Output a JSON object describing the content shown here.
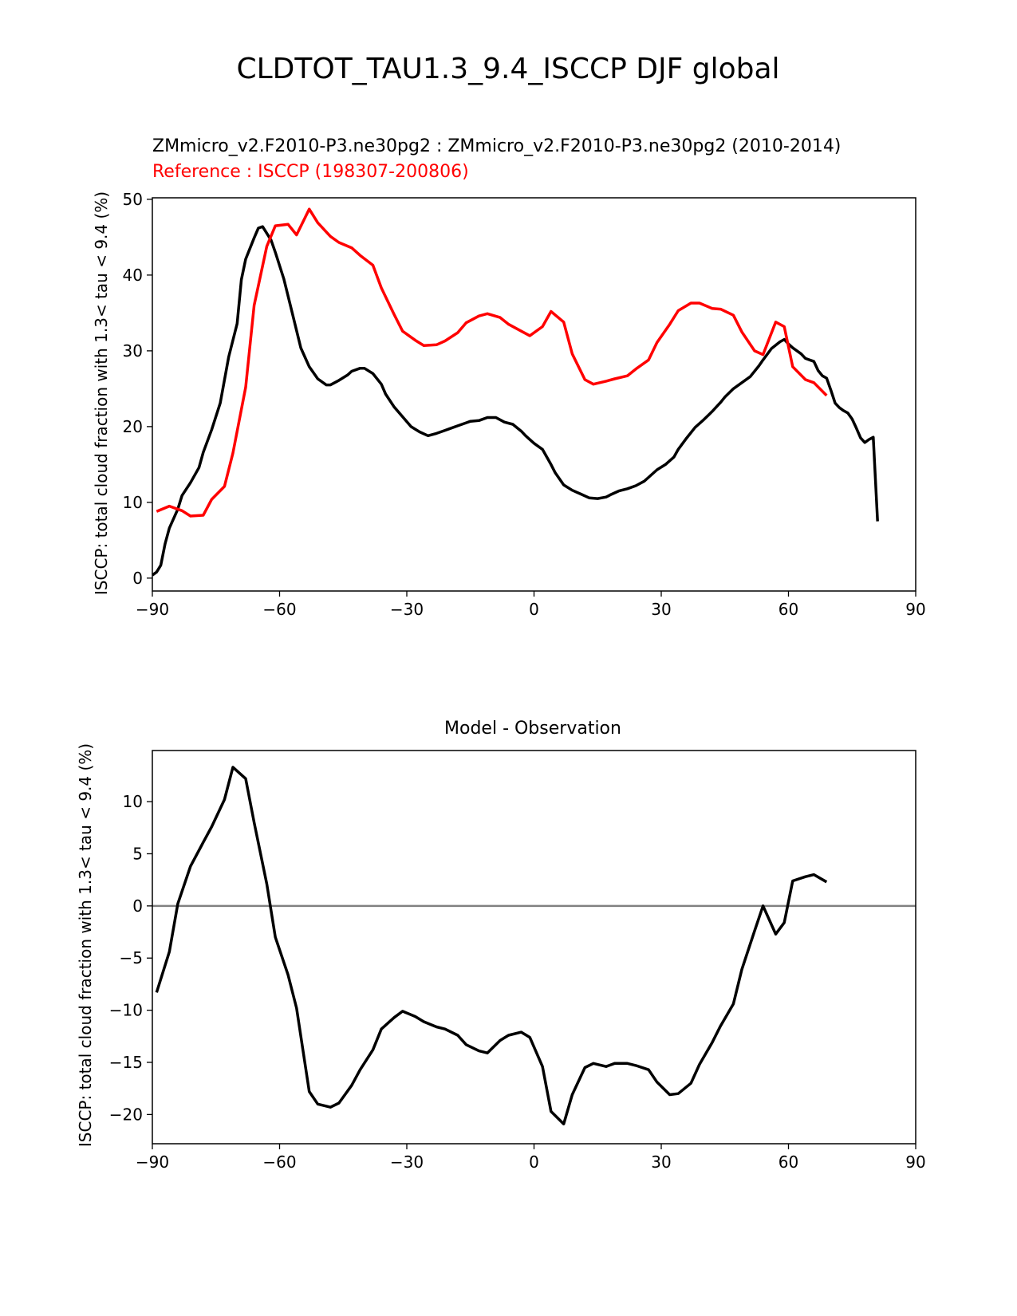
{
  "figure_title": "CLDTOT_TAU1.3_9.4_ISCCP DJF global",
  "chart_data": [
    {
      "type": "line",
      "subtitle_model": "ZMmicro_v2.F2010-P3.ne30pg2 : ZMmicro_v2.F2010-P3.ne30pg2 (2010-2014)",
      "subtitle_reference": "Reference : ISCCP (198307-200806)",
      "xlabel": "",
      "ylabel": "ISCCP: total cloud fraction with 1.3< tau < 9.4 (%)",
      "xlim": [
        -90,
        90
      ],
      "ylim": [
        -1.7,
        50.2
      ],
      "xticks": [
        -90,
        -60,
        -30,
        0,
        30,
        60,
        90
      ],
      "xtick_labels": [
        "−90",
        "−60",
        "−30",
        "0",
        "30",
        "60",
        "90"
      ],
      "yticks": [
        0,
        10,
        20,
        30,
        40,
        50
      ],
      "ytick_labels": [
        "0",
        "10",
        "20",
        "30",
        "40",
        "50"
      ],
      "grid": false,
      "series": [
        {
          "color": "#000000",
          "points": [
            [
              -90,
              0.4
            ],
            [
              -89,
              0.8
            ],
            [
              -88,
              1.7
            ],
            [
              -87,
              4.5
            ],
            [
              -86,
              6.6
            ],
            [
              -84,
              9.1
            ],
            [
              -83,
              10.9
            ],
            [
              -81,
              12.6
            ],
            [
              -79,
              14.6
            ],
            [
              -78,
              16.6
            ],
            [
              -76,
              19.6
            ],
            [
              -74,
              23.1
            ],
            [
              -72,
              29.2
            ],
            [
              -70,
              33.6
            ],
            [
              -69,
              39.4
            ],
            [
              -68,
              42.1
            ],
            [
              -66,
              44.9
            ],
            [
              -65,
              46.2
            ],
            [
              -64,
              46.4
            ],
            [
              -62,
              44.6
            ],
            [
              -61,
              43.0
            ],
            [
              -59,
              39.5
            ],
            [
              -57,
              35.0
            ],
            [
              -55,
              30.4
            ],
            [
              -53,
              27.9
            ],
            [
              -51,
              26.3
            ],
            [
              -49,
              25.5
            ],
            [
              -48,
              25.5
            ],
            [
              -46,
              26.1
            ],
            [
              -44,
              26.8
            ],
            [
              -43,
              27.3
            ],
            [
              -41,
              27.7
            ],
            [
              -40,
              27.7
            ],
            [
              -38,
              27.0
            ],
            [
              -36,
              25.6
            ],
            [
              -35,
              24.3
            ],
            [
              -33,
              22.6
            ],
            [
              -31,
              21.3
            ],
            [
              -29,
              20.0
            ],
            [
              -27,
              19.3
            ],
            [
              -25,
              18.8
            ],
            [
              -23,
              19.1
            ],
            [
              -21,
              19.5
            ],
            [
              -20,
              19.7
            ],
            [
              -18,
              20.1
            ],
            [
              -16,
              20.5
            ],
            [
              -15,
              20.7
            ],
            [
              -13,
              20.8
            ],
            [
              -11,
              21.2
            ],
            [
              -9,
              21.2
            ],
            [
              -7,
              20.6
            ],
            [
              -5,
              20.3
            ],
            [
              -3,
              19.4
            ],
            [
              -2,
              18.8
            ],
            [
              0,
              17.8
            ],
            [
              2,
              17.0
            ],
            [
              4,
              15.0
            ],
            [
              5,
              13.9
            ],
            [
              7,
              12.3
            ],
            [
              9,
              11.6
            ],
            [
              11,
              11.1
            ],
            [
              13,
              10.6
            ],
            [
              15,
              10.5
            ],
            [
              17,
              10.7
            ],
            [
              18,
              11.0
            ],
            [
              20,
              11.5
            ],
            [
              22,
              11.8
            ],
            [
              24,
              12.2
            ],
            [
              26,
              12.8
            ],
            [
              27,
              13.3
            ],
            [
              29,
              14.3
            ],
            [
              31,
              15.0
            ],
            [
              33,
              16.0
            ],
            [
              34,
              17.0
            ],
            [
              36,
              18.5
            ],
            [
              38,
              19.9
            ],
            [
              40,
              20.9
            ],
            [
              42,
              22.0
            ],
            [
              44,
              23.2
            ],
            [
              45,
              23.9
            ],
            [
              47,
              25.0
            ],
            [
              49,
              25.8
            ],
            [
              51,
              26.6
            ],
            [
              53,
              28.0
            ],
            [
              54,
              28.8
            ],
            [
              56,
              30.3
            ],
            [
              58,
              31.2
            ],
            [
              59,
              31.5
            ],
            [
              60,
              30.9
            ],
            [
              61,
              30.4
            ],
            [
              63,
              29.6
            ],
            [
              64,
              29.0
            ],
            [
              66,
              28.6
            ],
            [
              67,
              27.4
            ],
            [
              68,
              26.7
            ],
            [
              69,
              26.4
            ],
            [
              70,
              24.8
            ],
            [
              71,
              23.1
            ],
            [
              72,
              22.5
            ],
            [
              73,
              22.1
            ],
            [
              74,
              21.8
            ],
            [
              75,
              21.0
            ],
            [
              76,
              19.8
            ],
            [
              77,
              18.5
            ],
            [
              78,
              17.9
            ],
            [
              79,
              18.3
            ],
            [
              80,
              18.6
            ],
            [
              81,
              7.5
            ]
          ]
        },
        {
          "color": "#ff0000",
          "points": [
            [
              -89,
              8.8
            ],
            [
              -86,
              9.5
            ],
            [
              -83,
              8.9
            ],
            [
              -81,
              8.2
            ],
            [
              -78,
              8.3
            ],
            [
              -76,
              10.4
            ],
            [
              -73,
              12.1
            ],
            [
              -71,
              16.5
            ],
            [
              -68,
              25.2
            ],
            [
              -66,
              36.0
            ],
            [
              -63,
              43.8
            ],
            [
              -61,
              46.5
            ],
            [
              -58,
              46.7
            ],
            [
              -56,
              45.3
            ],
            [
              -53,
              48.7
            ],
            [
              -51,
              46.9
            ],
            [
              -48,
              45.1
            ],
            [
              -46,
              44.3
            ],
            [
              -43,
              43.6
            ],
            [
              -41,
              42.6
            ],
            [
              -38,
              41.3
            ],
            [
              -36,
              38.3
            ],
            [
              -33,
              34.8
            ],
            [
              -31,
              32.6
            ],
            [
              -28,
              31.4
            ],
            [
              -26,
              30.7
            ],
            [
              -23,
              30.8
            ],
            [
              -21,
              31.3
            ],
            [
              -18,
              32.4
            ],
            [
              -16,
              33.7
            ],
            [
              -13,
              34.6
            ],
            [
              -11,
              34.9
            ],
            [
              -8,
              34.4
            ],
            [
              -6,
              33.5
            ],
            [
              -3,
              32.6
            ],
            [
              -1,
              32.0
            ],
            [
              2,
              33.2
            ],
            [
              4,
              35.2
            ],
            [
              7,
              33.8
            ],
            [
              9,
              29.6
            ],
            [
              12,
              26.2
            ],
            [
              14,
              25.6
            ],
            [
              17,
              26.0
            ],
            [
              19,
              26.3
            ],
            [
              22,
              26.7
            ],
            [
              24,
              27.6
            ],
            [
              27,
              28.8
            ],
            [
              29,
              31.1
            ],
            [
              32,
              33.5
            ],
            [
              34,
              35.3
            ],
            [
              37,
              36.3
            ],
            [
              39,
              36.3
            ],
            [
              42,
              35.6
            ],
            [
              44,
              35.5
            ],
            [
              47,
              34.7
            ],
            [
              49,
              32.5
            ],
            [
              52,
              30.0
            ],
            [
              54,
              29.5
            ],
            [
              57,
              33.8
            ],
            [
              59,
              33.2
            ],
            [
              61,
              27.9
            ],
            [
              64,
              26.2
            ],
            [
              66,
              25.8
            ],
            [
              69,
              24.1
            ]
          ]
        }
      ]
    },
    {
      "type": "line",
      "title": "Model - Observation",
      "xlabel": "",
      "ylabel": "ISCCP: total cloud fraction with 1.3< tau < 9.4 (%)",
      "xlim": [
        -90,
        90
      ],
      "ylim": [
        -22.8,
        14.9
      ],
      "xticks": [
        -90,
        -60,
        -30,
        0,
        30,
        60,
        90
      ],
      "xtick_labels": [
        "−90",
        "−60",
        "−30",
        "0",
        "30",
        "60",
        "90"
      ],
      "yticks": [
        -20,
        -15,
        -10,
        -5,
        0,
        5,
        10
      ],
      "ytick_labels": [
        "−20",
        "−15",
        "−10",
        "−5",
        "0",
        "5",
        "10"
      ],
      "grid": false,
      "zero_line_color": "#808080",
      "series": [
        {
          "color": "#000000",
          "points": [
            [
              -89,
              -8.3
            ],
            [
              -86,
              -4.4
            ],
            [
              -84,
              0.2
            ],
            [
              -81,
              3.8
            ],
            [
              -78,
              6.1
            ],
            [
              -76,
              7.6
            ],
            [
              -73,
              10.2
            ],
            [
              -71,
              13.3
            ],
            [
              -68,
              12.2
            ],
            [
              -66,
              8.0
            ],
            [
              -63,
              2.1
            ],
            [
              -61,
              -3.0
            ],
            [
              -58,
              -6.6
            ],
            [
              -56,
              -9.8
            ],
            [
              -53,
              -17.8
            ],
            [
              -51,
              -19.0
            ],
            [
              -48,
              -19.3
            ],
            [
              -46,
              -18.9
            ],
            [
              -43,
              -17.2
            ],
            [
              -41,
              -15.7
            ],
            [
              -38,
              -13.8
            ],
            [
              -36,
              -11.8
            ],
            [
              -33,
              -10.7
            ],
            [
              -31,
              -10.1
            ],
            [
              -28,
              -10.6
            ],
            [
              -26,
              -11.1
            ],
            [
              -23,
              -11.6
            ],
            [
              -21,
              -11.8
            ],
            [
              -18,
              -12.4
            ],
            [
              -16,
              -13.3
            ],
            [
              -13,
              -13.9
            ],
            [
              -11,
              -14.1
            ],
            [
              -8,
              -12.9
            ],
            [
              -6,
              -12.4
            ],
            [
              -3,
              -12.1
            ],
            [
              -1,
              -12.6
            ],
            [
              2,
              -15.4
            ],
            [
              4,
              -19.7
            ],
            [
              7,
              -20.9
            ],
            [
              9,
              -18.1
            ],
            [
              12,
              -15.5
            ],
            [
              14,
              -15.1
            ],
            [
              17,
              -15.4
            ],
            [
              19,
              -15.1
            ],
            [
              22,
              -15.1
            ],
            [
              24,
              -15.3
            ],
            [
              27,
              -15.7
            ],
            [
              29,
              -16.9
            ],
            [
              32,
              -18.1
            ],
            [
              34,
              -18.0
            ],
            [
              37,
              -17.0
            ],
            [
              39,
              -15.2
            ],
            [
              42,
              -13.1
            ],
            [
              44,
              -11.5
            ],
            [
              47,
              -9.4
            ],
            [
              49,
              -6.1
            ],
            [
              52,
              -2.4
            ],
            [
              54,
              0.0
            ],
            [
              57,
              -2.7
            ],
            [
              59,
              -1.6
            ],
            [
              61,
              2.4
            ],
            [
              64,
              2.8
            ],
            [
              66,
              3.0
            ],
            [
              69,
              2.3
            ]
          ]
        }
      ]
    }
  ]
}
